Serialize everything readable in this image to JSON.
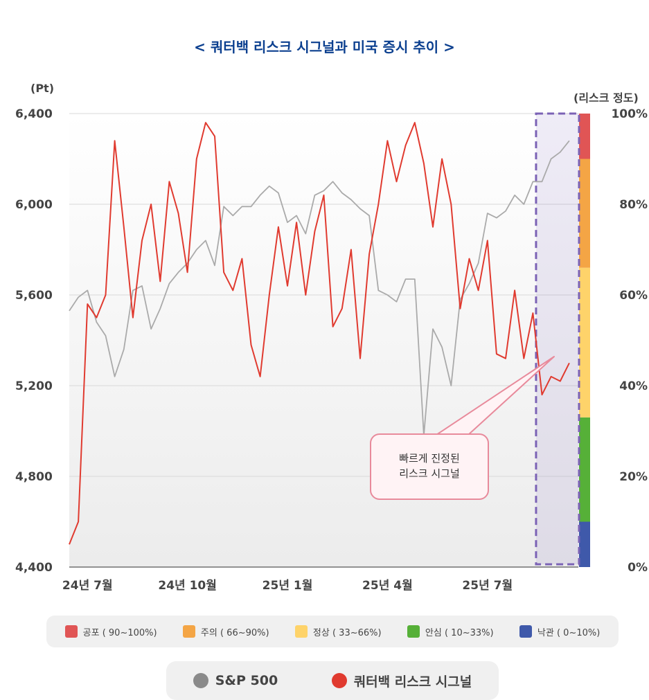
{
  "title": "< 쿼터백 리스크 시그널과 미국 증시 추이 >",
  "left_axis_unit": "(Pt)",
  "right_axis_unit": "(리스크 정도)",
  "callout": {
    "line1": "빠르게 진정된",
    "line2": "리스크 시그널"
  },
  "risk_legend": [
    {
      "label": "공포 ( 90~100%)",
      "color": "#e05555"
    },
    {
      "label": "주의 ( 66~90%)",
      "color": "#f4a545"
    },
    {
      "label": "정상 ( 33~66%)",
      "color": "#fed36a"
    },
    {
      "label": "안심 ( 10~33%)",
      "color": "#56b038"
    },
    {
      "label": "낙관 ( 0~10%)",
      "color": "#3f59aa"
    }
  ],
  "series_legend": [
    {
      "label": "S&P 500",
      "color": "#8a8a8a"
    },
    {
      "label": "쿼터백 리스크 시그널",
      "color": "#e03a2f"
    }
  ],
  "chart_data": {
    "type": "line",
    "x_tick_labels": [
      "24년 7월",
      "24년 10월",
      "25년 1월",
      "25년 4월",
      "25년 7월"
    ],
    "y_left": {
      "ticks": [
        "4,400",
        "4,800",
        "5,200",
        "5,600",
        "6,000",
        "6,400"
      ],
      "range": [
        4400,
        6400
      ]
    },
    "y_right": {
      "ticks": [
        "0%",
        "20%",
        "40%",
        "60%",
        "80%",
        "100%"
      ],
      "range": [
        0,
        100
      ]
    },
    "risk_bands": [
      {
        "from": 0,
        "to": 10,
        "color": "#3f59aa"
      },
      {
        "from": 10,
        "to": 33,
        "color": "#56b038"
      },
      {
        "from": 33,
        "to": 66,
        "color": "#fed36a"
      },
      {
        "from": 66,
        "to": 90,
        "color": "#f4a545"
      },
      {
        "from": 90,
        "to": 100,
        "color": "#e05555"
      }
    ],
    "x_index_range": [
      0,
      56
    ],
    "x_tick_index": [
      2,
      13,
      24,
      35,
      46
    ],
    "series": [
      {
        "name": "S&P 500",
        "color": "#aaaaaa",
        "x": [
          0,
          1,
          2,
          3,
          4,
          5,
          6,
          7,
          8,
          9,
          10,
          11,
          12,
          13,
          14,
          15,
          16,
          17,
          18,
          19,
          20,
          21,
          22,
          23,
          24,
          25,
          26,
          27,
          28,
          29,
          30,
          31,
          32,
          33,
          34,
          35,
          36,
          37,
          38,
          39,
          40,
          41,
          42,
          43,
          44,
          45,
          46,
          47,
          48,
          49,
          50,
          51,
          52,
          53,
          54,
          55
        ],
        "values": [
          5530,
          5590,
          5620,
          5480,
          5420,
          5240,
          5360,
          5620,
          5640,
          5450,
          5540,
          5650,
          5700,
          5740,
          5800,
          5840,
          5730,
          5990,
          5950,
          5990,
          5990,
          6040,
          6080,
          6050,
          5920,
          5950,
          5870,
          6040,
          6060,
          6100,
          6050,
          6020,
          5980,
          5950,
          5620,
          5600,
          5570,
          5670,
          5670,
          4980,
          5450,
          5370,
          5200,
          5580,
          5650,
          5740,
          5960,
          5940,
          5970,
          6040,
          6000,
          6100,
          6100,
          6200,
          6230,
          6280
        ]
      },
      {
        "name": "쿼터백 리스크 시그널",
        "color": "#e03a2f",
        "x": [
          0,
          1,
          2,
          3,
          4,
          5,
          6,
          7,
          8,
          9,
          10,
          11,
          12,
          13,
          14,
          15,
          16,
          17,
          18,
          19,
          20,
          21,
          22,
          23,
          24,
          25,
          26,
          27,
          28,
          29,
          30,
          31,
          32,
          33,
          34,
          35,
          36,
          37,
          38,
          39,
          40,
          41,
          42,
          43,
          44,
          45,
          46,
          47,
          48,
          49,
          50,
          51,
          52,
          53,
          54,
          55
        ],
        "values": [
          5,
          10,
          58,
          55,
          60,
          94,
          75,
          55,
          72,
          80,
          63,
          85,
          78,
          65,
          90,
          98,
          95,
          65,
          61,
          68,
          49,
          42,
          60,
          75,
          62,
          76,
          60,
          74,
          82,
          53,
          57,
          70,
          46,
          69,
          80,
          94,
          85,
          93,
          98,
          89,
          75,
          90,
          80,
          57,
          68,
          61,
          72,
          47,
          46,
          61,
          46,
          56,
          38,
          42,
          41,
          45
        ]
      }
    ],
    "annotation": {
      "label": "빠르게 진정된 리스크 시그널",
      "highlight_x_range": [
        51.5,
        56
      ]
    }
  }
}
